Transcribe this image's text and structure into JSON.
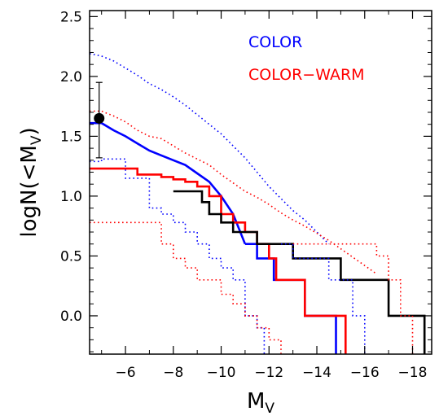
{
  "chart_data": {
    "type": "line",
    "title": "",
    "xlabel": "M",
    "xlabel_sub": "V",
    "ylabel": "logN(<M",
    "ylabel_sub": "V",
    "ylabel_close": ")",
    "xlim": [
      -4.5,
      -18.8
    ],
    "ylim": [
      -0.32,
      2.55
    ],
    "grid": false,
    "legend_position": "top-right",
    "xticks": [
      {
        "value": -6,
        "label": "−6"
      },
      {
        "value": -8,
        "label": "−8"
      },
      {
        "value": -10,
        "label": "−10"
      },
      {
        "value": -12,
        "label": "−12"
      },
      {
        "value": -14,
        "label": "−14"
      },
      {
        "value": -16,
        "label": "−16"
      },
      {
        "value": -18,
        "label": "−18"
      }
    ],
    "yticks": [
      {
        "value": 0.0,
        "label": "0.0"
      },
      {
        "value": 0.5,
        "label": "0.5"
      },
      {
        "value": 1.0,
        "label": "1.0"
      },
      {
        "value": 1.5,
        "label": "1.5"
      },
      {
        "value": 2.0,
        "label": "2.0"
      },
      {
        "value": 2.5,
        "label": "2.5"
      }
    ],
    "legend": [
      {
        "label": "COLOR",
        "color": "#0000ff"
      },
      {
        "label": "COLOR−WARM",
        "color": "#ff0000"
      }
    ],
    "series": [
      {
        "color": "#0000ff",
        "style": "dotted",
        "step": false,
        "x": [
          -4.5,
          -5,
          -5.5,
          -6,
          -6.5,
          -7,
          -7.5,
          -8,
          -8.5,
          -9,
          -9.5,
          -10,
          -10.5,
          -11,
          -11.5,
          -12,
          -12.5,
          -13,
          -13.5,
          -14,
          -14.5
        ],
        "y": [
          2.19,
          2.17,
          2.13,
          2.07,
          2.01,
          1.94,
          1.89,
          1.83,
          1.76,
          1.68,
          1.6,
          1.52,
          1.42,
          1.32,
          1.2,
          1.08,
          0.98,
          0.88,
          0.8,
          0.7,
          0.6
        ]
      },
      {
        "color": "#0000ff",
        "style": "solid",
        "step": false,
        "x": [
          -4.5,
          -5,
          -5.5,
          -6,
          -6.5,
          -7,
          -7.5,
          -8,
          -8.5,
          -9,
          -9.5,
          -10,
          -10.5,
          -11
        ],
        "y": [
          1.61,
          1.61,
          1.55,
          1.5,
          1.44,
          1.38,
          1.34,
          1.3,
          1.26,
          1.19,
          1.12,
          1.0,
          0.85,
          0.6
        ]
      },
      {
        "color": "#0000ff",
        "style": "solid",
        "step": true,
        "x": [
          -11,
          -11.5,
          -12,
          -12.2,
          -12.5,
          -13,
          -13.5,
          -14,
          -14.5,
          -14.8
        ],
        "y": [
          0.6,
          0.48,
          0.48,
          0.3,
          0.3,
          0.3,
          0.0,
          0.0,
          0.0,
          -0.32
        ]
      },
      {
        "color": "#0000ff",
        "style": "dotted",
        "step": true,
        "x": [
          -4.5,
          -5,
          -6,
          -7,
          -7.5,
          -8,
          -8.5,
          -9,
          -9.5,
          -10,
          -10.5,
          -11,
          -11.5,
          -11.8
        ],
        "y": [
          1.29,
          1.31,
          1.15,
          0.9,
          0.85,
          0.78,
          0.7,
          0.6,
          0.48,
          0.4,
          0.3,
          0.0,
          -0.1,
          -0.32
        ]
      },
      {
        "color": "#ff0000",
        "style": "dotted",
        "step": false,
        "x": [
          -4.5,
          -5,
          -5.5,
          -6,
          -6.5,
          -7,
          -7.5,
          -8,
          -8.5,
          -9,
          -9.5,
          -10,
          -10.5,
          -11,
          -11.5,
          -12,
          -12.5,
          -13,
          -13.5,
          -14,
          -14.5,
          -15,
          -15.5,
          -16,
          -16.5
        ],
        "y": [
          1.71,
          1.71,
          1.67,
          1.62,
          1.55,
          1.5,
          1.48,
          1.42,
          1.36,
          1.31,
          1.26,
          1.18,
          1.11,
          1.04,
          0.99,
          0.93,
          0.86,
          0.8,
          0.75,
          0.69,
          0.63,
          0.56,
          0.49,
          0.42,
          0.35
        ]
      },
      {
        "color": "#ff0000",
        "style": "solid",
        "step": true,
        "x": [
          -4.5,
          -6,
          -6.5,
          -7.5,
          -8,
          -8.5,
          -9,
          -9.5,
          -10,
          -10.5,
          -11,
          -11.5,
          -12,
          -12.3,
          -12.5,
          -13,
          -13.5,
          -14,
          -14.8,
          -15.2
        ],
        "y": [
          1.23,
          1.23,
          1.18,
          1.16,
          1.14,
          1.12,
          1.08,
          1.0,
          0.85,
          0.78,
          0.7,
          0.6,
          0.48,
          0.3,
          0.3,
          0.3,
          0.0,
          0.0,
          0.0,
          -0.32
        ]
      },
      {
        "color": "#ff0000",
        "style": "dotted",
        "step": true,
        "x": [
          -4.5,
          -6,
          -7,
          -7.5,
          -8,
          -8.5,
          -9,
          -9.5,
          -10,
          -10.5,
          -11,
          -11.5,
          -12,
          -12.5
        ],
        "y": [
          0.78,
          0.78,
          0.78,
          0.6,
          0.48,
          0.4,
          0.3,
          0.3,
          0.18,
          0.1,
          0.0,
          -0.1,
          -0.2,
          -0.32
        ]
      },
      {
        "color": "#000000",
        "style": "solid",
        "step": true,
        "x": [
          -8,
          -9,
          -9.2,
          -9.5,
          -10,
          -10.5,
          -11,
          -11.5,
          -12,
          -13,
          -14,
          -15,
          -16,
          -17,
          -18,
          -18.5
        ],
        "y": [
          1.04,
          1.04,
          0.95,
          0.85,
          0.78,
          0.7,
          0.7,
          0.6,
          0.6,
          0.48,
          0.48,
          0.3,
          0.3,
          0.0,
          0.0,
          -0.32
        ]
      },
      {
        "color": "#ff0000",
        "style": "dotted",
        "step": true,
        "x": [
          -13,
          -14,
          -15,
          -16,
          -16.5,
          -17,
          -17.5,
          -18
        ],
        "y": [
          0.6,
          0.6,
          0.6,
          0.6,
          0.5,
          0.3,
          0.0,
          -0.32
        ]
      },
      {
        "color": "#0000ff",
        "style": "dotted",
        "step": true,
        "x": [
          -12.5,
          -13,
          -14,
          -14.5,
          -15,
          -15.5,
          -16
        ],
        "y": [
          0.6,
          0.48,
          0.48,
          0.3,
          0.3,
          0.0,
          -0.32
        ]
      }
    ],
    "point": {
      "x": -4.9,
      "y": 1.65,
      "err_low": 1.32,
      "err_high": 1.95
    }
  }
}
